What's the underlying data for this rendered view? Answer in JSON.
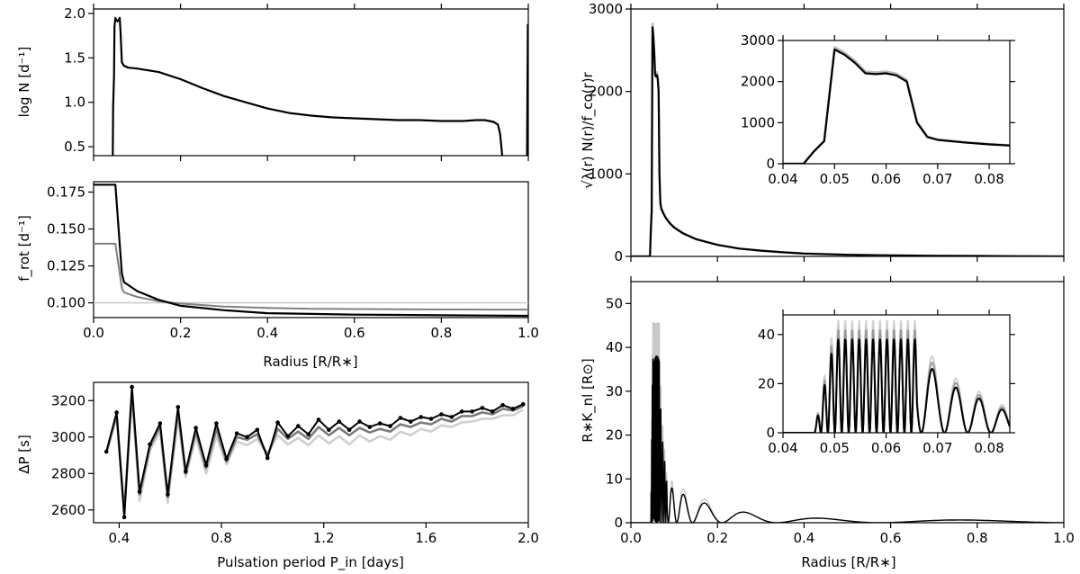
{
  "chart_data": [
    {
      "id": "panel_logN",
      "type": "line",
      "ylabel": "log N [d⁻¹]",
      "xlim": [
        0.0,
        1.0
      ],
      "ylim": [
        0.4,
        2.05
      ],
      "yticks": [
        "0.5",
        "1.0",
        "1.5",
        "2.0"
      ],
      "xticks": [],
      "series": [
        {
          "name": "N",
          "color": "#000000",
          "x": [
            0.044,
            0.045,
            0.047,
            0.048,
            0.05,
            0.052,
            0.055,
            0.058,
            0.06,
            0.062,
            0.065,
            0.07,
            0.08,
            0.1,
            0.15,
            0.2,
            0.25,
            0.3,
            0.35,
            0.4,
            0.45,
            0.5,
            0.55,
            0.6,
            0.65,
            0.7,
            0.75,
            0.8,
            0.85,
            0.88,
            0.9,
            0.92,
            0.93,
            0.935,
            0.938,
            0.94
          ],
          "y": [
            0.4,
            0.95,
            1.3,
            1.85,
            1.95,
            1.93,
            1.91,
            1.93,
            1.95,
            1.8,
            1.45,
            1.41,
            1.39,
            1.38,
            1.34,
            1.26,
            1.16,
            1.07,
            1.0,
            0.93,
            0.88,
            0.85,
            0.83,
            0.82,
            0.81,
            0.8,
            0.8,
            0.79,
            0.79,
            0.8,
            0.8,
            0.78,
            0.75,
            0.65,
            0.5,
            0.4
          ]
        },
        {
          "name": "N edge",
          "color": "#000000",
          "x": [
            0.997,
            0.999
          ],
          "y": [
            0.4,
            1.88
          ]
        }
      ]
    },
    {
      "id": "panel_frot",
      "type": "line",
      "ylabel": "f_rot [d⁻¹]",
      "xlabel": "Radius [R/R∗]",
      "xlim": [
        0.0,
        1.0
      ],
      "ylim": [
        0.09,
        0.182
      ],
      "yticks": [
        "0.100",
        "0.125",
        "0.150",
        "0.175"
      ],
      "xticks": [
        "0.0",
        "0.2",
        "0.4",
        "0.6",
        "0.8",
        "1.0"
      ],
      "series": [
        {
          "name": "frot high",
          "color": "#000000",
          "x": [
            0.0,
            0.05,
            0.06,
            0.065,
            0.07,
            0.1,
            0.15,
            0.2,
            0.3,
            0.4,
            0.5,
            0.6,
            0.7,
            0.8,
            0.9,
            1.0
          ],
          "y": [
            0.18,
            0.18,
            0.14,
            0.12,
            0.114,
            0.108,
            0.102,
            0.098,
            0.095,
            0.093,
            0.0925,
            0.092,
            0.0918,
            0.0916,
            0.0914,
            0.0912
          ]
        },
        {
          "name": "frot mid",
          "color": "#808080",
          "x": [
            0.0,
            0.05,
            0.06,
            0.065,
            0.07,
            0.1,
            0.15,
            0.2,
            0.3,
            0.4,
            0.5,
            0.6,
            0.7,
            0.8,
            0.9,
            1.0
          ],
          "y": [
            0.14,
            0.14,
            0.12,
            0.11,
            0.107,
            0.104,
            0.101,
            0.0995,
            0.0975,
            0.0965,
            0.096,
            0.0958,
            0.0956,
            0.0955,
            0.0954,
            0.0954
          ]
        },
        {
          "name": "frot flat",
          "color": "#cccccc",
          "x": [
            0.0,
            1.0
          ],
          "y": [
            0.1,
            0.1
          ]
        }
      ]
    },
    {
      "id": "panel_dP",
      "type": "line",
      "ylabel": "ΔP [s]",
      "xlabel": "Pulsation period P_in [days]",
      "xlim": [
        0.3,
        2.0
      ],
      "ylim": [
        2530,
        3300
      ],
      "yticks": [
        "2600",
        "2800",
        "3000",
        "3200"
      ],
      "xticks": [
        "0.4",
        "0.8",
        "1.2",
        "1.6",
        "2.0"
      ],
      "series": [
        {
          "name": "dP black",
          "color": "#000000",
          "markers": true,
          "x": [
            0.35,
            0.39,
            0.42,
            0.45,
            0.48,
            0.52,
            0.56,
            0.59,
            0.63,
            0.66,
            0.7,
            0.74,
            0.78,
            0.82,
            0.86,
            0.9,
            0.94,
            0.98,
            1.02,
            1.06,
            1.1,
            1.14,
            1.18,
            1.22,
            1.26,
            1.3,
            1.34,
            1.38,
            1.42,
            1.46,
            1.5,
            1.54,
            1.58,
            1.62,
            1.66,
            1.7,
            1.74,
            1.78,
            1.82,
            1.86,
            1.9,
            1.94,
            1.98
          ],
          "y": [
            2920,
            3135,
            2560,
            3275,
            2700,
            2960,
            3075,
            2685,
            3165,
            2810,
            3050,
            2845,
            3075,
            2880,
            3020,
            3000,
            3040,
            2885,
            3080,
            3005,
            3060,
            3015,
            3095,
            3040,
            3085,
            3040,
            3085,
            3055,
            3075,
            3060,
            3105,
            3085,
            3110,
            3100,
            3125,
            3110,
            3140,
            3140,
            3160,
            3140,
            3175,
            3155,
            3180
          ]
        },
        {
          "name": "dP dark gray",
          "color": "#7a7a7a",
          "x": [
            0.35,
            0.39,
            0.42,
            0.45,
            0.48,
            0.52,
            0.56,
            0.59,
            0.63,
            0.66,
            0.7,
            0.74,
            0.78,
            0.82,
            0.86,
            0.9,
            0.94,
            0.98,
            1.02,
            1.06,
            1.1,
            1.14,
            1.18,
            1.22,
            1.26,
            1.3,
            1.34,
            1.38,
            1.42,
            1.46,
            1.5,
            1.54,
            1.58,
            1.62,
            1.66,
            1.7,
            1.74,
            1.78,
            1.82,
            1.86,
            1.9,
            1.94,
            1.98
          ],
          "y": [
            2915,
            3125,
            2580,
            3255,
            2685,
            2945,
            3060,
            2670,
            3140,
            2800,
            3030,
            2830,
            3045,
            2865,
            3000,
            2985,
            3015,
            2900,
            3045,
            2990,
            3030,
            2990,
            3055,
            3010,
            3050,
            3010,
            3050,
            3025,
            3045,
            3030,
            3070,
            3055,
            3080,
            3070,
            3100,
            3085,
            3115,
            3115,
            3135,
            3125,
            3155,
            3145,
            3170
          ]
        },
        {
          "name": "dP light gray",
          "color": "#cfcfcf",
          "x": [
            0.35,
            0.39,
            0.42,
            0.45,
            0.48,
            0.52,
            0.56,
            0.59,
            0.63,
            0.66,
            0.7,
            0.74,
            0.78,
            0.82,
            0.86,
            0.9,
            0.94,
            0.98,
            1.02,
            1.06,
            1.1,
            1.14,
            1.18,
            1.22,
            1.26,
            1.3,
            1.34,
            1.38,
            1.42,
            1.46,
            1.5,
            1.54,
            1.58,
            1.62,
            1.66,
            1.7,
            1.74,
            1.78,
            1.82,
            1.86,
            1.9,
            1.94,
            1.98
          ],
          "y": [
            2910,
            3110,
            2600,
            3230,
            2650,
            2925,
            3035,
            2640,
            3105,
            2780,
            3000,
            2800,
            3005,
            2850,
            2975,
            2955,
            2990,
            2905,
            3010,
            2960,
            2995,
            2955,
            3010,
            2965,
            3005,
            2960,
            3010,
            2975,
            3005,
            2985,
            3030,
            3010,
            3045,
            3030,
            3065,
            3055,
            3080,
            3085,
            3100,
            3100,
            3120,
            3120,
            3150
          ]
        }
      ]
    },
    {
      "id": "panel_lambdaN",
      "type": "line",
      "ylabel": "√λ(r) N(r)/f_co(r)r",
      "xlim": [
        0.0,
        1.0
      ],
      "ylim": [
        0,
        3000
      ],
      "yticks": [
        "0",
        "1000",
        "2000",
        "3000"
      ],
      "xticks": [],
      "series": [
        {
          "name": "lambdaN",
          "color": "#000000",
          "x": [
            0.0,
            0.044,
            0.046,
            0.048,
            0.05,
            0.052,
            0.054,
            0.056,
            0.058,
            0.06,
            0.062,
            0.064,
            0.066,
            0.068,
            0.07,
            0.075,
            0.08,
            0.09,
            0.1,
            0.12,
            0.15,
            0.2,
            0.25,
            0.3,
            0.35,
            0.4,
            0.5,
            0.6,
            0.7,
            0.8,
            0.9,
            0.97,
            1.0
          ],
          "y": [
            0,
            0,
            300,
            550,
            2780,
            2650,
            2450,
            2200,
            2180,
            2200,
            2150,
            2000,
            1000,
            650,
            580,
            520,
            470,
            400,
            350,
            280,
            210,
            140,
            95,
            70,
            50,
            35,
            20,
            12,
            8,
            5,
            2,
            0,
            0
          ]
        }
      ],
      "inset": {
        "xlim": [
          0.04,
          0.084
        ],
        "ylim": [
          0,
          3000
        ],
        "xticks": [
          "0.04",
          "0.05",
          "0.06",
          "0.07",
          "0.08"
        ],
        "yticks": [
          "0",
          "1000",
          "2000",
          "3000"
        ]
      }
    },
    {
      "id": "panel_RK",
      "type": "line",
      "ylabel": "R∗K_nl [R⊙]",
      "xlabel": "Radius [R/R∗]",
      "xlim": [
        0.0,
        1.0
      ],
      "ylim": [
        0,
        55
      ],
      "yticks": [
        "0",
        "10",
        "20",
        "30",
        "40",
        "50"
      ],
      "xticks": [
        "0.0",
        "0.2",
        "0.4",
        "0.6",
        "0.8",
        "1.0"
      ],
      "series": [
        {
          "name": "RK",
          "color": "#000000"
        }
      ],
      "inset": {
        "xlim": [
          0.04,
          0.084
        ],
        "ylim": [
          0,
          48
        ],
        "xticks": [
          "0.04",
          "0.05",
          "0.06",
          "0.07",
          "0.08"
        ],
        "yticks": [
          "0",
          "20",
          "40"
        ]
      }
    }
  ]
}
